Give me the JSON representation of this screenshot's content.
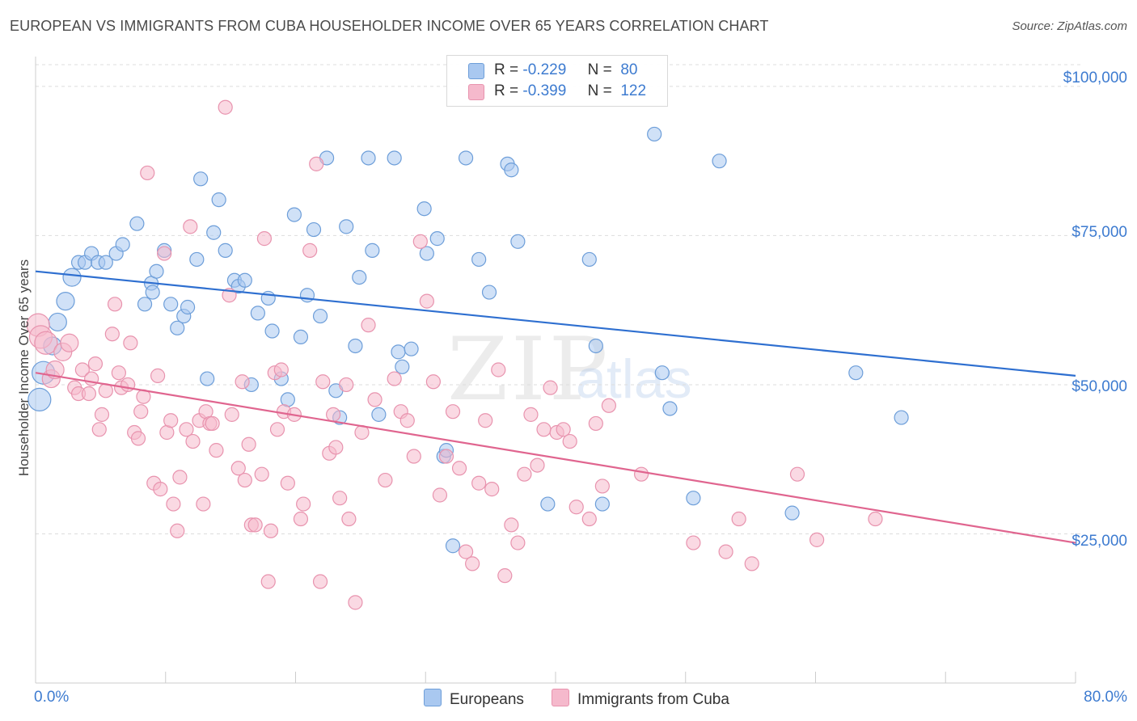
{
  "title": "EUROPEAN VS IMMIGRANTS FROM CUBA HOUSEHOLDER INCOME OVER 65 YEARS CORRELATION CHART",
  "source": "Source: ZipAtlas.com",
  "watermark": {
    "zip": "ZIP",
    "atlas": "atlas"
  },
  "colors": {
    "europeans_fill": "#a9c8f0",
    "europeans_stroke": "#6d9ed9",
    "europeans_line": "#2e6fd0",
    "cuba_fill": "#f5b9cc",
    "cuba_stroke": "#e893ae",
    "cuba_line": "#e0658f",
    "grid": "#dddddd",
    "axis_text": "#3d7bd0"
  },
  "legend": {
    "rows": [
      {
        "r_label": "R =",
        "r_value": "-0.229",
        "n_label": "N =",
        "n_value": "80"
      },
      {
        "r_label": "R =",
        "r_value": "-0.399",
        "n_label": "N =",
        "n_value": "122"
      }
    ],
    "bottom": [
      "Europeans",
      "Immigrants from Cuba"
    ]
  },
  "chart_data": {
    "type": "scatter",
    "title": "EUROPEAN VS IMMIGRANTS FROM CUBA HOUSEHOLDER INCOME OVER 65 YEARS CORRELATION CHART",
    "xlabel": "",
    "ylabel": "Householder Income Over 65 years",
    "xlim": [
      0,
      80
    ],
    "ylim": [
      0,
      105000
    ],
    "x_tick_labels": [
      "0.0%",
      "80.0%"
    ],
    "y_tick_labels": [
      "$25,000",
      "$50,000",
      "$75,000",
      "$100,000"
    ],
    "y_ticks": [
      25000,
      50000,
      75000,
      100000
    ],
    "grid": true,
    "legend_position": "top-center",
    "series": [
      {
        "name": "Europeans",
        "trend": {
          "x": [
            0,
            80
          ],
          "y": [
            69000,
            51500
          ]
        },
        "points": [
          [
            0.3,
            47500
          ],
          [
            0.6,
            52000
          ],
          [
            1.3,
            56500
          ],
          [
            1.7,
            60500
          ],
          [
            2.3,
            64000
          ],
          [
            2.8,
            68000
          ],
          [
            3.3,
            70500
          ],
          [
            3.8,
            70500
          ],
          [
            4.3,
            72000
          ],
          [
            4.8,
            70500
          ],
          [
            5.4,
            70500
          ],
          [
            6.2,
            72000
          ],
          [
            6.7,
            73500
          ],
          [
            7.8,
            77000
          ],
          [
            8.4,
            63500
          ],
          [
            8.9,
            67000
          ],
          [
            9.0,
            65500
          ],
          [
            9.3,
            69000
          ],
          [
            9.9,
            72500
          ],
          [
            10.4,
            63500
          ],
          [
            10.9,
            59500
          ],
          [
            11.4,
            61500
          ],
          [
            11.7,
            63000
          ],
          [
            12.4,
            71000
          ],
          [
            12.7,
            84500
          ],
          [
            13.2,
            51000
          ],
          [
            13.7,
            75500
          ],
          [
            14.1,
            81000
          ],
          [
            14.6,
            72500
          ],
          [
            15.3,
            67500
          ],
          [
            15.6,
            66500
          ],
          [
            16.1,
            67500
          ],
          [
            16.6,
            50000
          ],
          [
            17.1,
            62000
          ],
          [
            17.9,
            64500
          ],
          [
            18.2,
            59000
          ],
          [
            18.9,
            51000
          ],
          [
            19.4,
            47500
          ],
          [
            19.9,
            78500
          ],
          [
            20.4,
            58000
          ],
          [
            20.9,
            65000
          ],
          [
            21.4,
            76000
          ],
          [
            21.9,
            61500
          ],
          [
            22.4,
            88000
          ],
          [
            23.1,
            49000
          ],
          [
            23.4,
            44500
          ],
          [
            23.9,
            76500
          ],
          [
            24.6,
            56500
          ],
          [
            24.9,
            68000
          ],
          [
            25.6,
            88000
          ],
          [
            25.9,
            72500
          ],
          [
            26.4,
            45000
          ],
          [
            27.6,
            88000
          ],
          [
            27.9,
            55500
          ],
          [
            28.2,
            53000
          ],
          [
            28.9,
            56000
          ],
          [
            29.9,
            79500
          ],
          [
            30.1,
            72000
          ],
          [
            30.9,
            74500
          ],
          [
            31.4,
            38000
          ],
          [
            31.6,
            39000
          ],
          [
            32.1,
            23000
          ],
          [
            33.1,
            88000
          ],
          [
            34.1,
            71000
          ],
          [
            34.9,
            65500
          ],
          [
            36.3,
            87000
          ],
          [
            36.6,
            86000
          ],
          [
            37.1,
            74000
          ],
          [
            39.4,
            30000
          ],
          [
            42.6,
            71000
          ],
          [
            43.1,
            56500
          ],
          [
            43.6,
            30000
          ],
          [
            47.6,
            92000
          ],
          [
            48.2,
            52000
          ],
          [
            48.8,
            46000
          ],
          [
            50.6,
            31000
          ],
          [
            52.6,
            87500
          ],
          [
            58.2,
            28500
          ],
          [
            63.1,
            52000
          ],
          [
            66.6,
            44500
          ]
        ]
      },
      {
        "name": "Immigrants from Cuba",
        "trend": {
          "x": [
            0,
            80
          ],
          "y": [
            52000,
            23500
          ]
        },
        "points": [
          [
            0.2,
            60000
          ],
          [
            0.4,
            58000
          ],
          [
            0.8,
            57000
          ],
          [
            1.2,
            51000
          ],
          [
            1.5,
            52500
          ],
          [
            2.1,
            55500
          ],
          [
            2.6,
            57000
          ],
          [
            3.0,
            49500
          ],
          [
            3.3,
            48500
          ],
          [
            3.6,
            52500
          ],
          [
            4.1,
            48500
          ],
          [
            4.3,
            51000
          ],
          [
            4.6,
            53500
          ],
          [
            4.9,
            42500
          ],
          [
            5.1,
            45000
          ],
          [
            5.4,
            49000
          ],
          [
            5.9,
            58500
          ],
          [
            6.1,
            63500
          ],
          [
            6.4,
            52000
          ],
          [
            6.6,
            49500
          ],
          [
            7.1,
            50000
          ],
          [
            7.3,
            57000
          ],
          [
            7.6,
            42000
          ],
          [
            7.9,
            41000
          ],
          [
            8.1,
            45500
          ],
          [
            8.3,
            48000
          ],
          [
            8.6,
            85500
          ],
          [
            9.1,
            33500
          ],
          [
            9.4,
            51500
          ],
          [
            9.6,
            32500
          ],
          [
            9.9,
            72000
          ],
          [
            10.1,
            42000
          ],
          [
            10.4,
            44000
          ],
          [
            10.6,
            30000
          ],
          [
            10.9,
            25500
          ],
          [
            11.1,
            34500
          ],
          [
            11.6,
            42500
          ],
          [
            11.9,
            76500
          ],
          [
            12.1,
            40500
          ],
          [
            12.6,
            44000
          ],
          [
            12.9,
            30000
          ],
          [
            13.1,
            45500
          ],
          [
            13.4,
            43500
          ],
          [
            13.6,
            43500
          ],
          [
            13.9,
            39000
          ],
          [
            14.6,
            96500
          ],
          [
            14.9,
            65000
          ],
          [
            15.1,
            45000
          ],
          [
            15.6,
            36000
          ],
          [
            15.9,
            50500
          ],
          [
            16.1,
            34000
          ],
          [
            16.4,
            40000
          ],
          [
            16.6,
            26500
          ],
          [
            16.9,
            26500
          ],
          [
            17.4,
            35000
          ],
          [
            17.6,
            74500
          ],
          [
            17.9,
            17000
          ],
          [
            18.1,
            25500
          ],
          [
            18.4,
            52000
          ],
          [
            18.6,
            42500
          ],
          [
            18.9,
            52500
          ],
          [
            19.1,
            45500
          ],
          [
            19.4,
            33500
          ],
          [
            19.9,
            45000
          ],
          [
            20.4,
            27500
          ],
          [
            20.6,
            30000
          ],
          [
            21.1,
            72500
          ],
          [
            21.6,
            87000
          ],
          [
            21.9,
            17000
          ],
          [
            22.1,
            50500
          ],
          [
            22.6,
            38500
          ],
          [
            22.9,
            45000
          ],
          [
            23.1,
            39500
          ],
          [
            23.4,
            31000
          ],
          [
            23.9,
            50000
          ],
          [
            24.1,
            27500
          ],
          [
            24.6,
            13500
          ],
          [
            25.1,
            42000
          ],
          [
            25.6,
            60000
          ],
          [
            26.1,
            47500
          ],
          [
            26.9,
            34000
          ],
          [
            27.6,
            51000
          ],
          [
            28.1,
            45500
          ],
          [
            28.6,
            44000
          ],
          [
            29.1,
            38000
          ],
          [
            29.6,
            74000
          ],
          [
            30.1,
            64000
          ],
          [
            30.6,
            50500
          ],
          [
            31.1,
            31500
          ],
          [
            31.6,
            38000
          ],
          [
            32.1,
            45500
          ],
          [
            32.6,
            36000
          ],
          [
            33.1,
            22000
          ],
          [
            33.6,
            20000
          ],
          [
            34.1,
            33500
          ],
          [
            34.6,
            44000
          ],
          [
            35.1,
            32500
          ],
          [
            35.6,
            52500
          ],
          [
            36.1,
            18000
          ],
          [
            36.6,
            26500
          ],
          [
            37.1,
            23500
          ],
          [
            37.6,
            35000
          ],
          [
            38.1,
            45000
          ],
          [
            38.6,
            36500
          ],
          [
            39.1,
            42500
          ],
          [
            39.6,
            49500
          ],
          [
            40.1,
            42000
          ],
          [
            40.6,
            42500
          ],
          [
            41.1,
            40500
          ],
          [
            41.6,
            29500
          ],
          [
            42.6,
            27500
          ],
          [
            43.1,
            43500
          ],
          [
            43.6,
            33000
          ],
          [
            44.1,
            46500
          ],
          [
            46.6,
            35000
          ],
          [
            50.6,
            23500
          ],
          [
            53.1,
            22000
          ],
          [
            54.1,
            27500
          ],
          [
            55.1,
            20000
          ],
          [
            58.6,
            35000
          ],
          [
            60.1,
            24000
          ],
          [
            64.6,
            27500
          ]
        ]
      }
    ]
  }
}
